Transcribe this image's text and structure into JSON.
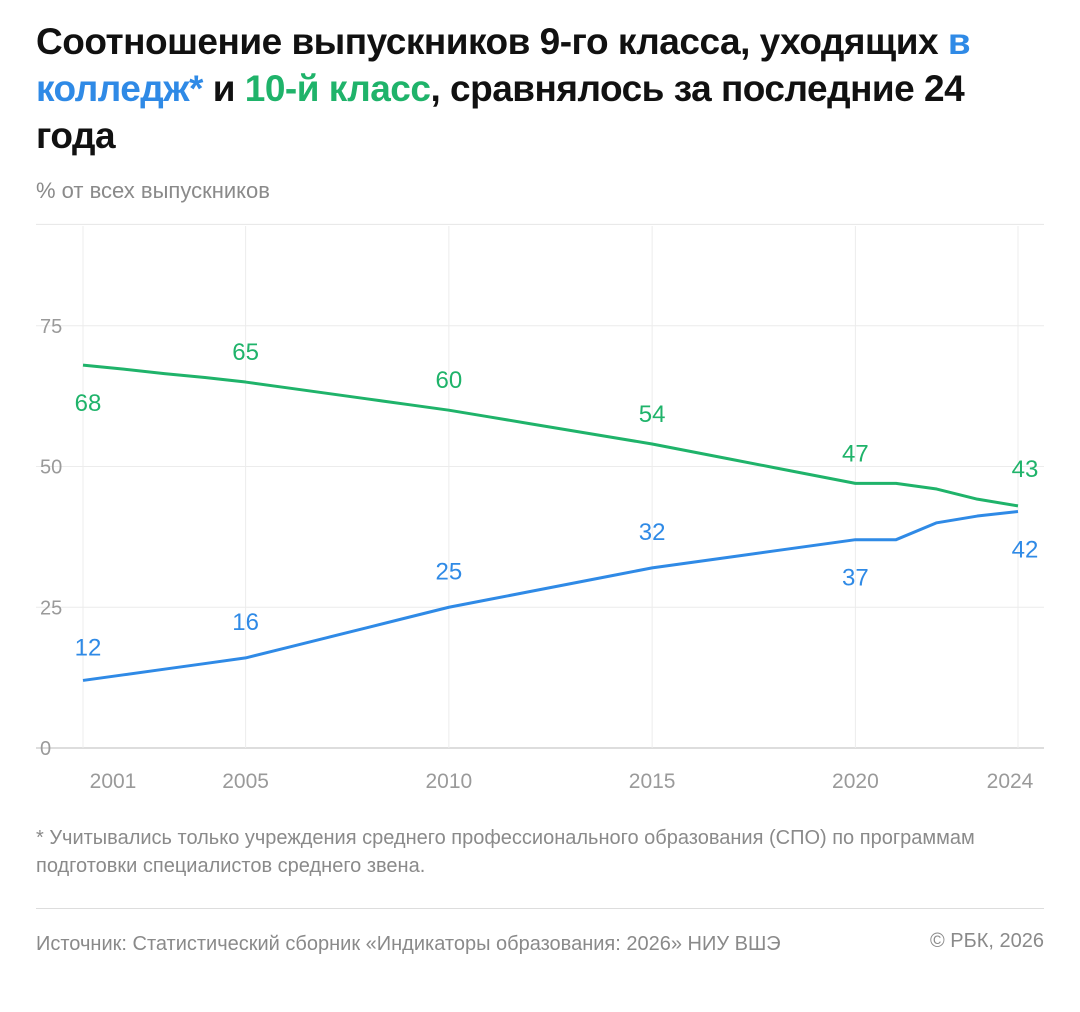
{
  "title": {
    "part1": "Соотношение выпускников 9-го класса, уходящих ",
    "blue": "в колледж*",
    "mid": " и ",
    "green": "10-й класс",
    "part2": ", сравнялось за последние 24 года"
  },
  "subtitle": "% от всех выпускников",
  "footnote": "* Учитывались только учреждения среднего профессионального образования (СПО) по программам подготовки специалистов среднего звена.",
  "source": "Источник: Статистический сборник «Индикаторы образования: 2026» НИУ ВШЭ",
  "copyright": "© РБК, 2026",
  "colors": {
    "blue": "#2f8ae6",
    "green": "#1fb36a"
  },
  "chart_data": {
    "type": "line",
    "ylabel": "% от всех выпускников",
    "ylim": [
      0,
      93
    ],
    "xlim": [
      2001,
      2024
    ],
    "yticks": [
      0,
      25,
      50,
      75
    ],
    "xticks": [
      2001,
      2005,
      2010,
      2015,
      2020,
      2024
    ],
    "grid": true,
    "x": [
      2001,
      2002,
      2003,
      2004,
      2005,
      2006,
      2007,
      2008,
      2009,
      2010,
      2011,
      2012,
      2013,
      2014,
      2015,
      2016,
      2017,
      2018,
      2019,
      2020,
      2021,
      2022,
      2023,
      2024
    ],
    "series": [
      {
        "name": "10-й класс",
        "color": "#1fb36a",
        "values": [
          68,
          67.3,
          66.5,
          65.8,
          65,
          64,
          63,
          62,
          61,
          60,
          58.8,
          57.6,
          56.4,
          55.2,
          54,
          52.6,
          51.2,
          49.8,
          48.4,
          47,
          47,
          46,
          44.2,
          43
        ],
        "labels": [
          {
            "x": 2001,
            "v": "68"
          },
          {
            "x": 2005,
            "v": "65"
          },
          {
            "x": 2010,
            "v": "60"
          },
          {
            "x": 2015,
            "v": "54"
          },
          {
            "x": 2020,
            "v": "47"
          },
          {
            "x": 2024,
            "v": "43"
          }
        ]
      },
      {
        "name": "в колледж*",
        "color": "#2f8ae6",
        "values": [
          12,
          13,
          14,
          15,
          16,
          17.8,
          19.6,
          21.4,
          23.2,
          25,
          26.4,
          27.8,
          29.2,
          30.6,
          32,
          33,
          34,
          35,
          36,
          37,
          37,
          40,
          41.2,
          42
        ],
        "labels": [
          {
            "x": 2001,
            "v": "12"
          },
          {
            "x": 2005,
            "v": "16"
          },
          {
            "x": 2010,
            "v": "25"
          },
          {
            "x": 2015,
            "v": "32"
          },
          {
            "x": 2020,
            "v": "37"
          },
          {
            "x": 2024,
            "v": "42"
          }
        ]
      }
    ]
  }
}
